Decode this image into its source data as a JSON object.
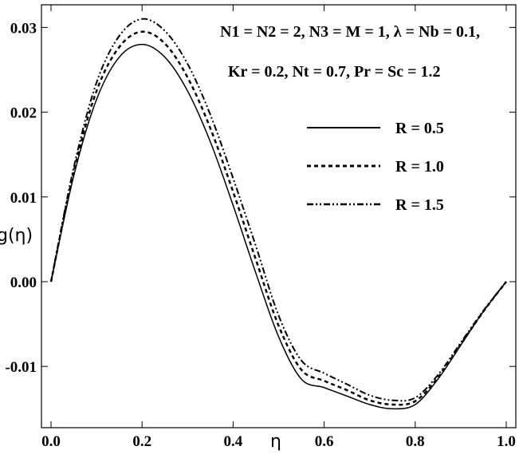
{
  "chart_data": {
    "type": "line",
    "xlabel": "η",
    "ylabel": "g(η)",
    "xlim": [
      0,
      1.0
    ],
    "ylim": [
      -0.0155,
      0.032
    ],
    "xticks": [
      "0.0",
      "0.2",
      "0.4",
      "0.6",
      "0.8",
      "1.0"
    ],
    "yticks": [
      "0.03",
      "0.02",
      "0.01",
      "0.00",
      "-0.01"
    ],
    "annotation_line1": "N1 = N2 = 2, N3 = M = 1, λ = Nb = 0.1,",
    "annotation_line2": "Kr = 0.2, Nt = 0.7, Pr = Sc = 1.2",
    "legend_position": "right",
    "grid": false,
    "series": [
      {
        "name": "R = 0.5",
        "style": "solid",
        "x": [
          0,
          0.05,
          0.1,
          0.15,
          0.2,
          0.25,
          0.3,
          0.35,
          0.4,
          0.45,
          0.5,
          0.55,
          0.6,
          0.65,
          0.7,
          0.75,
          0.8,
          0.85,
          0.9,
          0.95,
          1.0
        ],
        "y": [
          0,
          0.0125,
          0.0215,
          0.0265,
          0.028,
          0.0265,
          0.0225,
          0.0165,
          0.009,
          0.001,
          -0.0065,
          -0.0115,
          -0.0125,
          -0.0135,
          -0.0145,
          -0.015,
          -0.0145,
          -0.0115,
          -0.0075,
          -0.0035,
          0
        ]
      },
      {
        "name": "R = 1.0",
        "style": "dashed",
        "x": [
          0,
          0.05,
          0.1,
          0.15,
          0.2,
          0.25,
          0.3,
          0.35,
          0.4,
          0.45,
          0.5,
          0.55,
          0.6,
          0.65,
          0.7,
          0.75,
          0.8,
          0.85,
          0.9,
          0.95,
          1.0
        ],
        "y": [
          0,
          0.013,
          0.0225,
          0.0277,
          0.0295,
          0.0281,
          0.0241,
          0.0181,
          0.0106,
          0.0026,
          -0.0052,
          -0.0104,
          -0.0117,
          -0.0128,
          -0.014,
          -0.0145,
          -0.0141,
          -0.0113,
          -0.0074,
          -0.0035,
          0
        ]
      },
      {
        "name": "R = 1.5",
        "style": "dashdot",
        "x": [
          0,
          0.05,
          0.1,
          0.15,
          0.2,
          0.25,
          0.3,
          0.35,
          0.4,
          0.45,
          0.5,
          0.55,
          0.6,
          0.65,
          0.7,
          0.75,
          0.8,
          0.85,
          0.9,
          0.95,
          1.0
        ],
        "y": [
          0,
          0.0135,
          0.0235,
          0.029,
          0.031,
          0.0296,
          0.0257,
          0.0197,
          0.0122,
          0.0042,
          -0.004,
          -0.0093,
          -0.0108,
          -0.0121,
          -0.0134,
          -0.014,
          -0.0137,
          -0.011,
          -0.0072,
          -0.0034,
          0
        ]
      }
    ]
  }
}
